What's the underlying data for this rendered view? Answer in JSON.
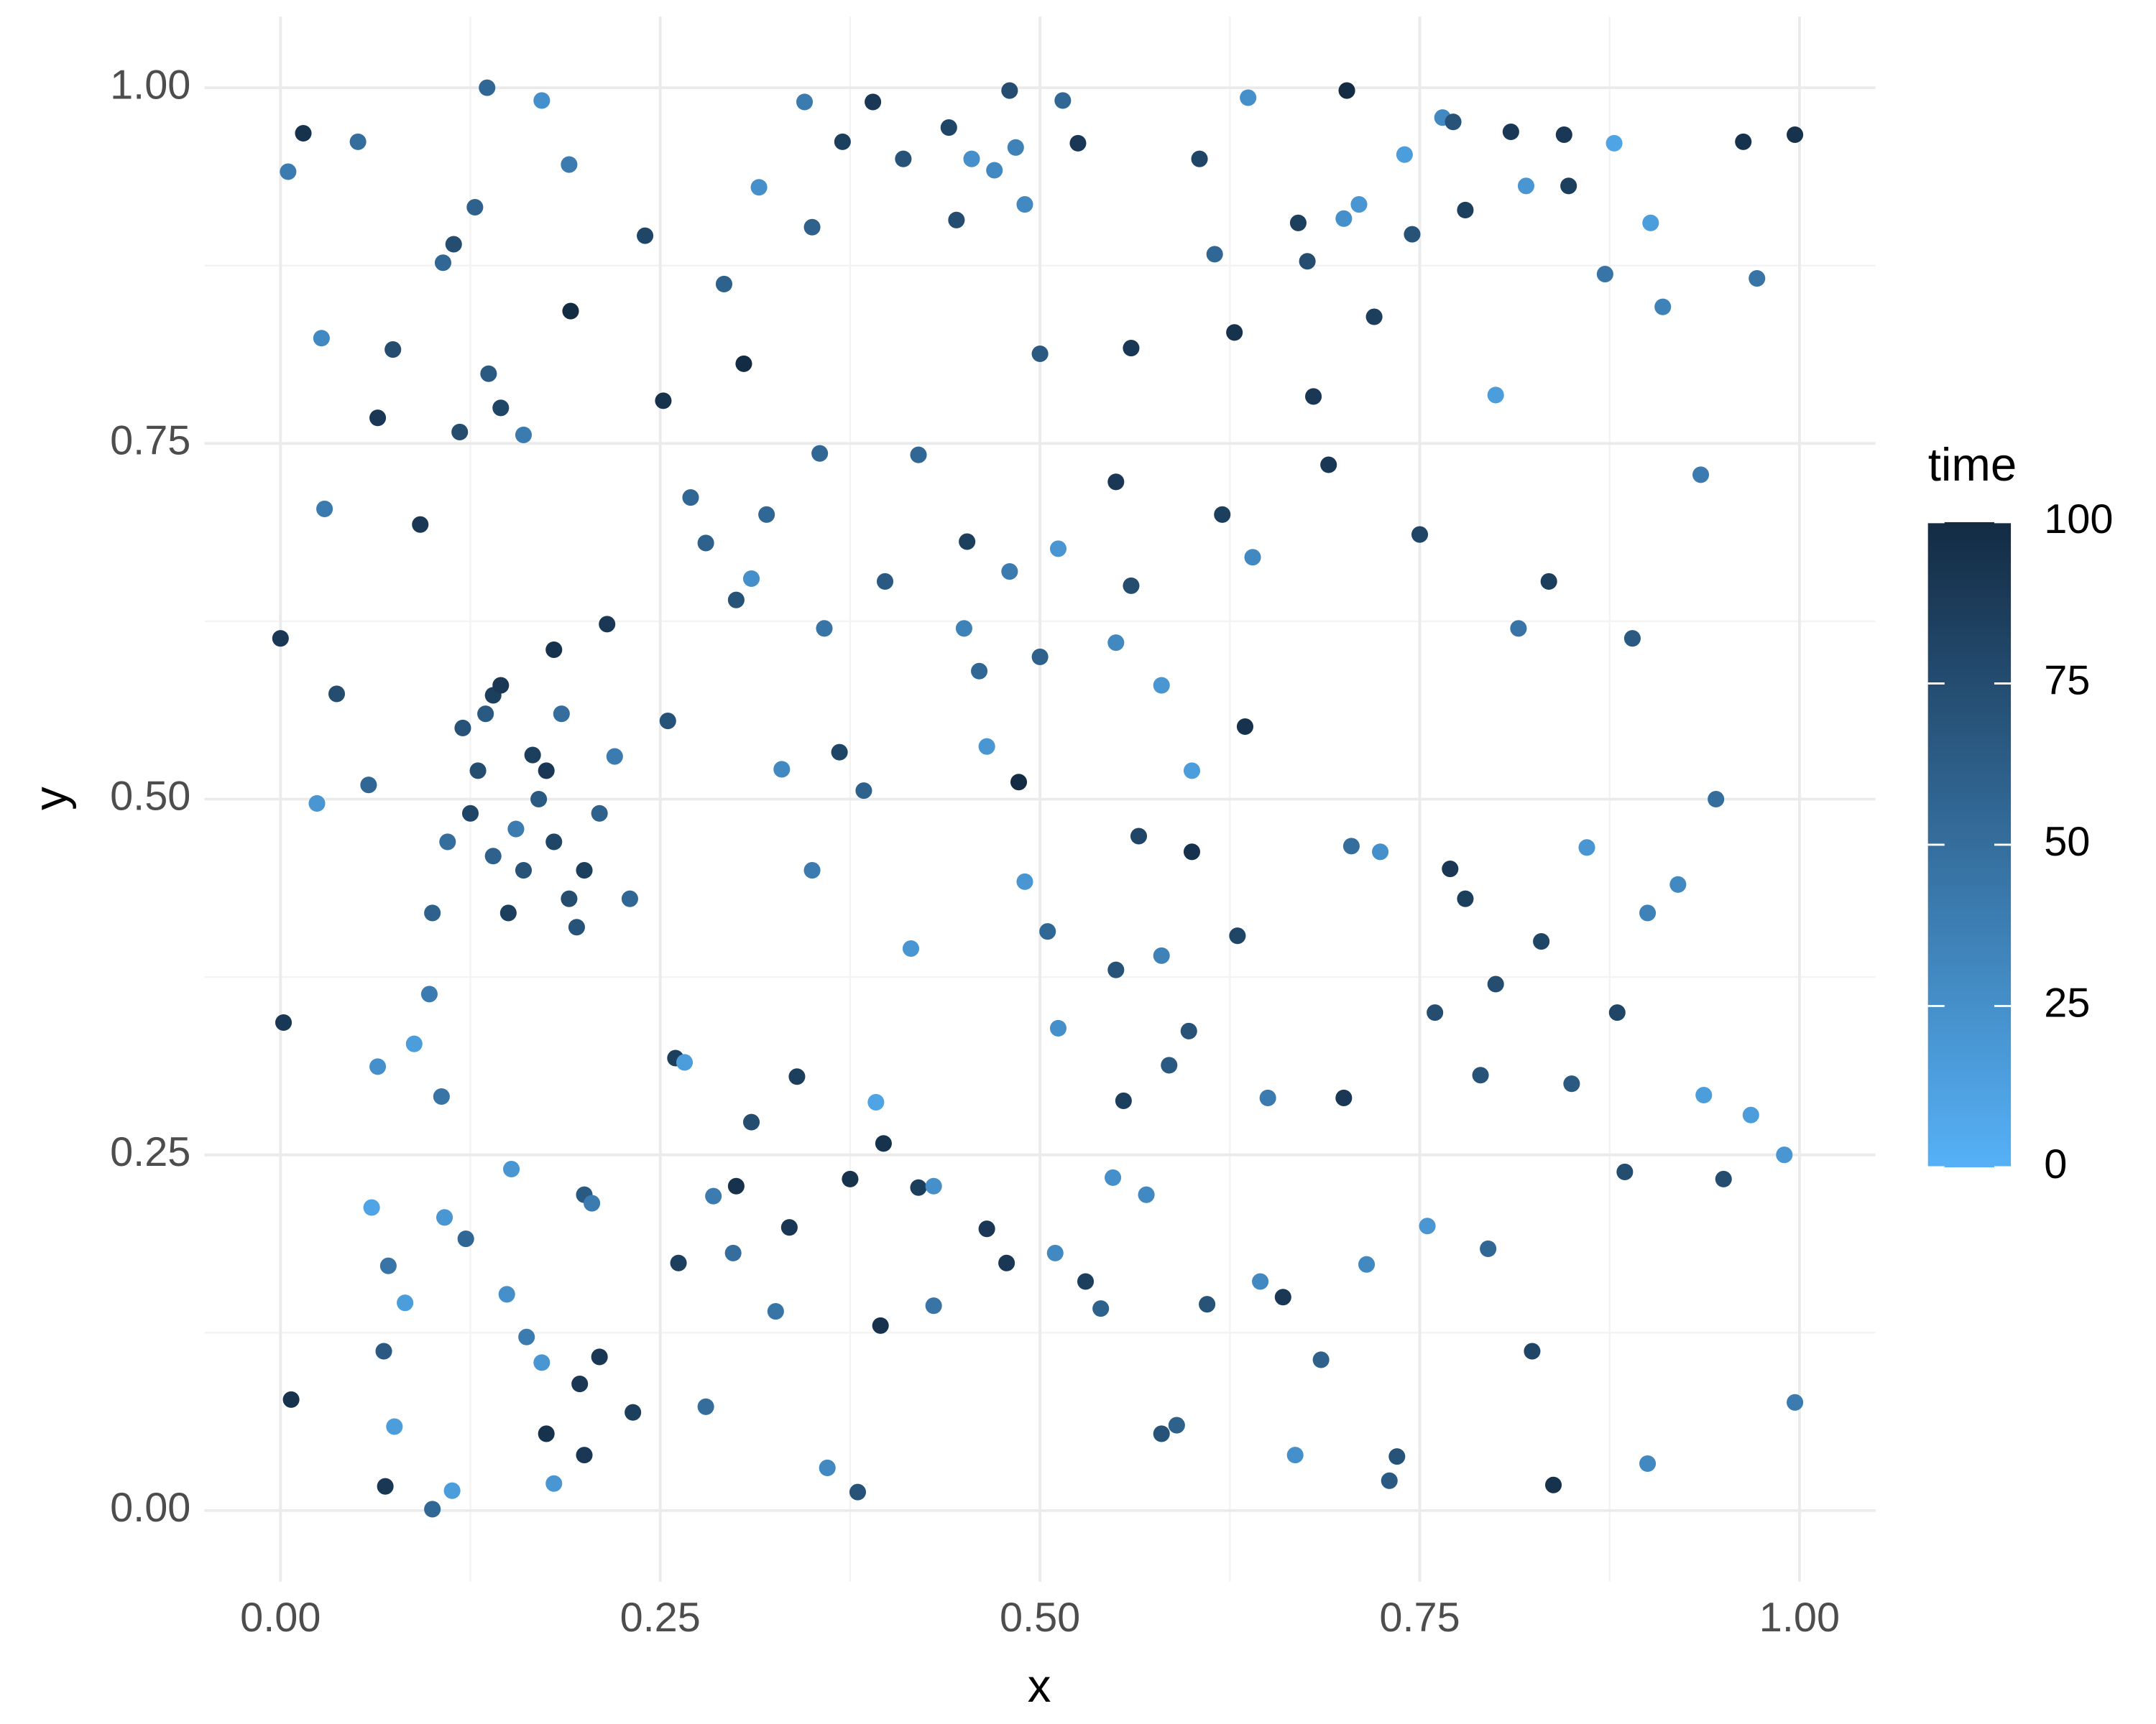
{
  "chart_data": {
    "type": "scatter",
    "x_label": "x",
    "y_label": "y",
    "xlim": [
      -0.05,
      1.05
    ],
    "ylim": [
      -0.05,
      1.05
    ],
    "xticks": [
      {
        "value": 0,
        "label": "0.00"
      },
      {
        "value": 0.25,
        "label": "0.25"
      },
      {
        "value": 0.5,
        "label": "0.50"
      },
      {
        "value": 0.75,
        "label": "0.75"
      },
      {
        "value": 1,
        "label": "1.00"
      }
    ],
    "yticks": [
      {
        "value": 0,
        "label": "0.00"
      },
      {
        "value": 0.25,
        "label": "0.25"
      },
      {
        "value": 0.5,
        "label": "0.50"
      },
      {
        "value": 0.75,
        "label": "0.75"
      },
      {
        "value": 1,
        "label": "1.00"
      }
    ],
    "grid": true,
    "legend_position": "right",
    "colorbar": {
      "title": "time",
      "lim": [
        0,
        100
      ],
      "ticks": [
        0,
        25,
        50,
        75,
        100
      ],
      "low_color": "#56B1F7",
      "high_color": "#132B43"
    },
    "x": [
      0.0,
      0.002,
      0.007,
      0.015,
      0.005,
      0.027,
      0.029,
      0.024,
      0.037,
      0.051,
      0.058,
      0.06,
      0.064,
      0.068,
      0.069,
      0.071,
      0.064,
      0.074,
      0.075,
      0.082,
      0.088,
      0.092,
      0.098,
      0.1,
      0.106,
      0.107,
      0.108,
      0.114,
      0.113,
      0.118,
      0.122,
      0.128,
      0.136,
      0.137,
      0.14,
      0.145,
      0.149,
      0.152,
      0.155,
      0.16,
      0.162,
      0.166,
      0.172,
      0.172,
      0.175,
      0.18,
      0.18,
      0.19,
      0.191,
      0.197,
      0.2,
      0.2,
      0.205,
      0.21,
      0.215,
      0.232,
      0.24,
      0.252,
      0.255,
      0.26,
      0.262,
      0.266,
      0.27,
      0.28,
      0.285,
      0.292,
      0.298,
      0.3,
      0.305,
      0.31,
      0.31,
      0.315,
      0.326,
      0.33,
      0.335,
      0.34,
      0.345,
      0.35,
      0.355,
      0.358,
      0.36,
      0.368,
      0.37,
      0.375,
      0.38,
      0.384,
      0.39,
      0.392,
      0.395,
      0.397,
      0.398,
      0.41,
      0.415,
      0.42,
      0.42,
      0.43,
      0.43,
      0.44,
      0.445,
      0.452,
      0.455,
      0.465,
      0.465,
      0.47,
      0.478,
      0.48,
      0.484,
      0.486,
      0.49,
      0.49,
      0.5,
      0.505,
      0.51,
      0.512,
      0.512,
      0.515,
      0.525,
      0.53,
      0.54,
      0.548,
      0.55,
      0.555,
      0.56,
      0.565,
      0.57,
      0.58,
      0.585,
      0.59,
      0.598,
      0.6,
      0.605,
      0.61,
      0.615,
      0.628,
      0.63,
      0.635,
      0.637,
      0.645,
      0.66,
      0.668,
      0.67,
      0.676,
      0.68,
      0.685,
      0.69,
      0.7,
      0.702,
      0.705,
      0.71,
      0.715,
      0.72,
      0.724,
      0.73,
      0.735,
      0.74,
      0.745,
      0.75,
      0.755,
      0.765,
      0.77,
      0.772,
      0.78,
      0.79,
      0.795,
      0.8,
      0.81,
      0.815,
      0.82,
      0.824,
      0.835,
      0.838,
      0.845,
      0.848,
      0.86,
      0.872,
      0.878,
      0.885,
      0.89,
      0.9,
      0.902,
      0.91,
      0.935,
      0.937,
      0.945,
      0.95,
      0.963,
      0.968,
      0.972,
      0.99,
      0.997,
      0.997,
      0.12,
      0.13,
      0.14,
      0.15,
      0.16,
      0.17,
      0.18,
      0.19,
      0.2,
      0.21,
      0.125,
      0.135,
      0.145,
      0.175,
      0.185,
      0.195,
      0.22,
      0.23,
      0.11,
      0.1,
      0.45,
      0.46,
      0.48,
      0.5,
      0.55,
      0.56,
      0.58,
      0.6,
      0.62,
      0.64,
      0.3,
      0.32,
      0.28,
      0.35,
      0.55,
      0.58,
      0.8,
      0.83,
      0.85,
      0.9,
      0.92,
      0.88,
      0.78,
      0.76,
      0.7,
      0.65
    ],
    "y": [
      0.613,
      0.343,
      0.078,
      0.968,
      0.941,
      0.824,
      0.704,
      0.497,
      0.574,
      0.962,
      0.51,
      0.213,
      0.312,
      0.112,
      0.017,
      0.172,
      0.768,
      0.816,
      0.059,
      0.146,
      0.328,
      0.693,
      0.363,
      0.001,
      0.291,
      0.877,
      0.206,
      0.89,
      0.014,
      0.758,
      0.191,
      0.916,
      1.0,
      0.799,
      0.573,
      0.775,
      0.152,
      0.24,
      0.479,
      0.756,
      0.122,
      0.531,
      0.991,
      0.104,
      0.054,
      0.019,
      0.605,
      0.946,
      0.843,
      0.089,
      0.039,
      0.222,
      0.216,
      0.108,
      0.623,
      0.069,
      0.896,
      0.78,
      0.555,
      0.318,
      0.174,
      0.315,
      0.712,
      0.073,
      0.221,
      0.862,
      0.181,
      0.228,
      0.806,
      0.273,
      0.655,
      0.93,
      0.14,
      0.521,
      0.199,
      0.305,
      0.99,
      0.902,
      0.743,
      0.62,
      0.03,
      0.533,
      0.962,
      0.233,
      0.013,
      0.506,
      0.99,
      0.287,
      0.13,
      0.258,
      0.653,
      0.95,
      0.395,
      0.227,
      0.742,
      0.144,
      0.228,
      0.972,
      0.907,
      0.681,
      0.95,
      0.537,
      0.198,
      0.942,
      0.174,
      0.998,
      0.958,
      0.512,
      0.442,
      0.918,
      0.813,
      0.407,
      0.181,
      0.676,
      0.339,
      0.991,
      0.961,
      0.161,
      0.142,
      0.234,
      0.723,
      0.288,
      0.817,
      0.474,
      0.222,
      0.054,
      0.313,
      0.06,
      0.337,
      0.463,
      0.95,
      0.145,
      0.883,
      0.828,
      0.404,
      0.551,
      0.993,
      0.161,
      0.15,
      0.039,
      0.905,
      0.878,
      0.783,
      0.106,
      0.735,
      0.908,
      0.998,
      0.467,
      0.918,
      0.173,
      0.839,
      0.463,
      0.021,
      0.038,
      0.953,
      0.897,
      0.686,
      0.2,
      0.979,
      0.451,
      0.976,
      0.914,
      0.306,
      0.184,
      0.784,
      0.969,
      0.62,
      0.931,
      0.112,
      0.653,
      0.018,
      0.967,
      0.931,
      0.466,
      0.869,
      0.961,
      0.238,
      0.613,
      0.033,
      0.905,
      0.846,
      0.728,
      0.292,
      0.5,
      0.233,
      0.962,
      0.278,
      0.866,
      0.25,
      0.967,
      0.076,
      0.55,
      0.52,
      0.46,
      0.42,
      0.45,
      0.5,
      0.47,
      0.43,
      0.45,
      0.49,
      0.49,
      0.56,
      0.58,
      0.52,
      0.56,
      0.41,
      0.53,
      0.43,
      0.47,
      0.42,
      0.62,
      0.59,
      0.66,
      0.6,
      0.61,
      0.65,
      0.58,
      0.52,
      0.7,
      0.67,
      0.64,
      0.7,
      0.68,
      0.45,
      0.38,
      0.39,
      0.37,
      0.4,
      0.3,
      0.42,
      0.44,
      0.35,
      0.43,
      0.35,
      0.29,
      0.29
    ],
    "color_values": [
      90,
      90,
      95,
      95,
      40,
      30,
      40,
      20,
      75,
      50,
      55,
      10,
      25,
      65,
      90,
      45,
      90,
      75,
      15,
      15,
      15,
      90,
      40,
      55,
      45,
      55,
      20,
      75,
      15,
      75,
      55,
      60,
      55,
      65,
      85,
      80,
      25,
      20,
      40,
      40,
      40,
      85,
      25,
      20,
      95,
      20,
      95,
      40,
      100,
      90,
      90,
      65,
      40,
      90,
      90,
      85,
      80,
      95,
      70,
      85,
      85,
      15,
      55,
      50,
      40,
      60,
      50,
      95,
      100,
      75,
      25,
      25,
      45,
      30,
      90,
      85,
      40,
      60,
      55,
      45,
      30,
      80,
      85,
      95,
      70,
      60,
      90,
      10,
      95,
      95,
      65,
      70,
      20,
      85,
      55,
      45,
      25,
      80,
      75,
      85,
      25,
      20,
      90,
      30,
      90,
      75,
      35,
      100,
      20,
      30,
      65,
      55,
      30,
      20,
      25,
      55,
      90,
      85,
      60,
      25,
      90,
      85,
      90,
      80,
      30,
      70,
      65,
      60,
      70,
      95,
      80,
      70,
      55,
      95,
      80,
      95,
      25,
      30,
      90,
      25,
      85,
      75,
      90,
      60,
      90,
      25,
      100,
      50,
      20,
      30,
      85,
      25,
      65,
      70,
      15,
      70,
      80,
      20,
      30,
      90,
      70,
      85,
      70,
      55,
      15,
      90,
      45,
      20,
      80,
      85,
      95,
      90,
      85,
      20,
      45,
      10,
      75,
      65,
      30,
      15,
      35,
      40,
      15,
      50,
      75,
      95,
      15,
      45,
      20,
      95,
      40,
      70,
      75,
      60,
      85,
      70,
      65,
      80,
      75,
      85,
      60,
      80,
      65,
      90,
      90,
      50,
      70,
      40,
      55,
      50,
      60,
      35,
      55,
      40,
      60,
      30,
      75,
      20,
      15,
      85,
      30,
      70,
      55,
      60,
      40,
      70,
      35,
      75,
      80,
      65,
      35,
      30,
      80,
      85,
      75,
      90,
      40
    ]
  }
}
